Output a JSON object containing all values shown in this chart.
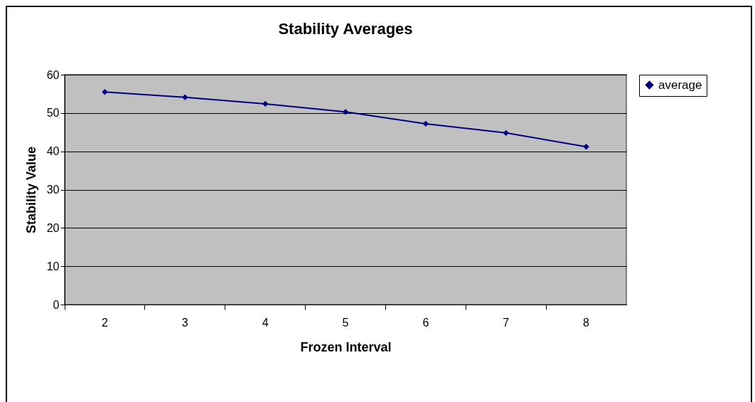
{
  "chart_data": {
    "type": "line",
    "title": "Stability Averages",
    "xlabel": "Frozen Interval",
    "ylabel": "Stability Value",
    "categories": [
      "2",
      "3",
      "4",
      "5",
      "6",
      "7",
      "8"
    ],
    "series": [
      {
        "name": "average",
        "color": "#000080",
        "values": [
          55.5,
          54.1,
          52.4,
          50.3,
          47.2,
          44.8,
          41.2
        ]
      }
    ],
    "ylim": [
      0,
      60
    ],
    "yticks": [
      0,
      10,
      20,
      30,
      40,
      50,
      60
    ],
    "grid": "y",
    "legend": "right",
    "marker": "diamond",
    "line_style": "solid"
  }
}
